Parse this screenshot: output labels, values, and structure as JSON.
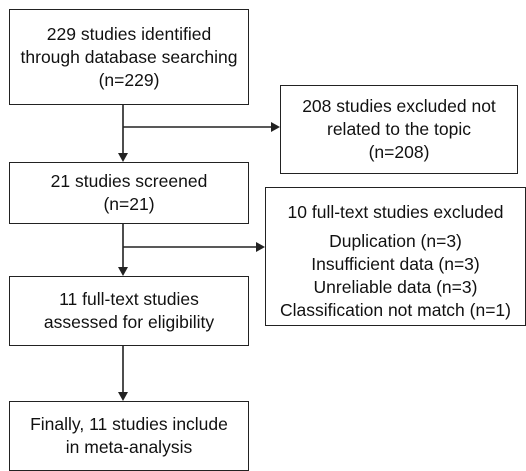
{
  "diagram": {
    "identified": {
      "lines": [
        "229 studies identified",
        "through database searching",
        "(n=229)"
      ]
    },
    "excluded_topic": {
      "lines": [
        "208 studies excluded not",
        "related to the topic",
        "(n=208)"
      ]
    },
    "screened": {
      "lines": [
        "21 studies screened",
        "(n=21)"
      ]
    },
    "excluded_fulltext": {
      "title": "10 full-text studies excluded",
      "reasons": [
        "Duplication (n=3)",
        "Insufficient data (n=3)",
        "Unreliable data (n=3)",
        "Classification not match (n=1)"
      ]
    },
    "fulltext_assessed": {
      "lines": [
        "11 full-text studies",
        "assessed for eligibility"
      ]
    },
    "included": {
      "lines": [
        "Finally, 11 studies include",
        "in meta-analysis"
      ]
    }
  }
}
